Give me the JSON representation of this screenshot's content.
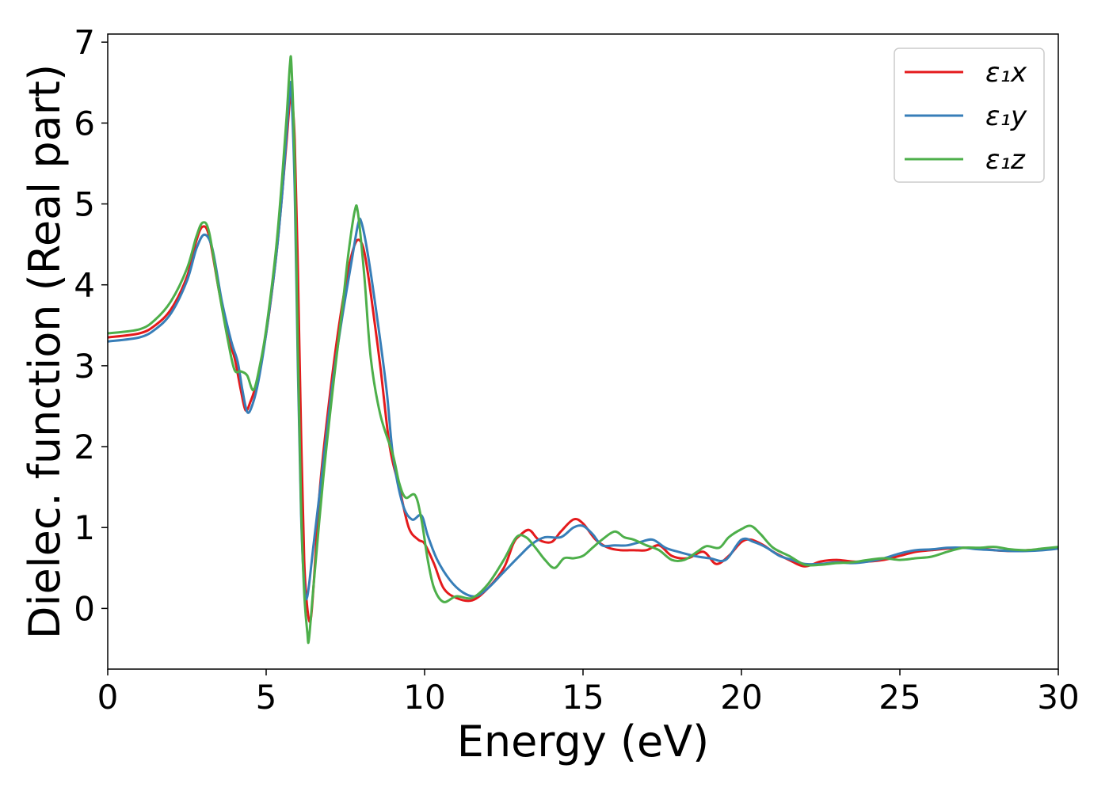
{
  "chart_data": {
    "type": "line",
    "title": "",
    "xlabel": "Energy (eV)",
    "ylabel": "Dielec. function (Real part)",
    "xlim": [
      0,
      30
    ],
    "ylim": [
      -0.75,
      7.1
    ],
    "xticks": [
      0,
      5,
      10,
      15,
      20,
      25,
      30
    ],
    "yticks": [
      0,
      1,
      2,
      3,
      4,
      5,
      6,
      7
    ],
    "xtick_labels": [
      "0",
      "5",
      "10",
      "15",
      "20",
      "25",
      "30"
    ],
    "ytick_labels": [
      "0",
      "1",
      "2",
      "3",
      "4",
      "5",
      "6",
      "7"
    ],
    "grid": false,
    "legend_position": "top-right",
    "series": [
      {
        "name": "ε₁x",
        "color": "#e41a1c",
        "points": [
          [
            0,
            3.35
          ],
          [
            1,
            3.4
          ],
          [
            1.5,
            3.5
          ],
          [
            2,
            3.7
          ],
          [
            2.5,
            4.1
          ],
          [
            2.8,
            4.55
          ],
          [
            3.0,
            4.72
          ],
          [
            3.2,
            4.6
          ],
          [
            3.5,
            3.95
          ],
          [
            3.8,
            3.35
          ],
          [
            4.0,
            3.1
          ],
          [
            4.2,
            2.7
          ],
          [
            4.35,
            2.45
          ],
          [
            4.5,
            2.55
          ],
          [
            4.7,
            2.8
          ],
          [
            5.0,
            3.4
          ],
          [
            5.3,
            4.3
          ],
          [
            5.5,
            5.1
          ],
          [
            5.65,
            5.8
          ],
          [
            5.75,
            6.3
          ],
          [
            5.8,
            6.35
          ],
          [
            5.9,
            5.8
          ],
          [
            6.0,
            4.2
          ],
          [
            6.1,
            2.2
          ],
          [
            6.2,
            0.6
          ],
          [
            6.3,
            0.0
          ],
          [
            6.4,
            -0.15
          ],
          [
            6.5,
            0.3
          ],
          [
            6.7,
            1.5
          ],
          [
            7.0,
            2.6
          ],
          [
            7.3,
            3.5
          ],
          [
            7.6,
            4.2
          ],
          [
            7.8,
            4.5
          ],
          [
            7.95,
            4.55
          ],
          [
            8.1,
            4.4
          ],
          [
            8.3,
            3.9
          ],
          [
            8.6,
            3.0
          ],
          [
            8.9,
            2.0
          ],
          [
            9.2,
            1.5
          ],
          [
            9.5,
            1.0
          ],
          [
            9.8,
            0.85
          ],
          [
            10.0,
            0.8
          ],
          [
            10.3,
            0.55
          ],
          [
            10.6,
            0.25
          ],
          [
            11.0,
            0.13
          ],
          [
            11.5,
            0.1
          ],
          [
            12.0,
            0.25
          ],
          [
            12.5,
            0.5
          ],
          [
            12.8,
            0.8
          ],
          [
            13.0,
            0.9
          ],
          [
            13.3,
            0.97
          ],
          [
            13.6,
            0.85
          ],
          [
            14.0,
            0.82
          ],
          [
            14.3,
            0.95
          ],
          [
            14.7,
            1.1
          ],
          [
            15.0,
            1.05
          ],
          [
            15.4,
            0.85
          ],
          [
            15.8,
            0.75
          ],
          [
            16.2,
            0.72
          ],
          [
            16.6,
            0.72
          ],
          [
            17.0,
            0.72
          ],
          [
            17.4,
            0.78
          ],
          [
            17.8,
            0.65
          ],
          [
            18.3,
            0.62
          ],
          [
            18.8,
            0.7
          ],
          [
            19.2,
            0.55
          ],
          [
            19.6,
            0.65
          ],
          [
            20.0,
            0.82
          ],
          [
            20.3,
            0.85
          ],
          [
            20.7,
            0.78
          ],
          [
            21.0,
            0.7
          ],
          [
            21.5,
            0.6
          ],
          [
            22.0,
            0.52
          ],
          [
            22.5,
            0.58
          ],
          [
            23.0,
            0.6
          ],
          [
            23.5,
            0.58
          ],
          [
            24.0,
            0.58
          ],
          [
            24.5,
            0.6
          ],
          [
            25.0,
            0.65
          ],
          [
            25.5,
            0.7
          ],
          [
            26.0,
            0.72
          ],
          [
            26.5,
            0.74
          ],
          [
            27.0,
            0.75
          ],
          [
            27.5,
            0.74
          ],
          [
            28.0,
            0.72
          ],
          [
            28.5,
            0.71
          ],
          [
            29.0,
            0.72
          ],
          [
            29.5,
            0.73
          ],
          [
            30.0,
            0.75
          ]
        ]
      },
      {
        "name": "ε₁y",
        "color": "#377eb8",
        "points": [
          [
            0,
            3.3
          ],
          [
            1,
            3.35
          ],
          [
            1.5,
            3.45
          ],
          [
            2,
            3.65
          ],
          [
            2.5,
            4.05
          ],
          [
            2.8,
            4.45
          ],
          [
            3.05,
            4.62
          ],
          [
            3.3,
            4.45
          ],
          [
            3.6,
            3.8
          ],
          [
            3.9,
            3.3
          ],
          [
            4.1,
            3.05
          ],
          [
            4.25,
            2.7
          ],
          [
            4.4,
            2.43
          ],
          [
            4.55,
            2.5
          ],
          [
            4.75,
            2.8
          ],
          [
            5.0,
            3.4
          ],
          [
            5.3,
            4.3
          ],
          [
            5.5,
            5.1
          ],
          [
            5.65,
            5.9
          ],
          [
            5.75,
            6.45
          ],
          [
            5.8,
            6.35
          ],
          [
            5.9,
            5.2
          ],
          [
            6.0,
            3.0
          ],
          [
            6.1,
            1.2
          ],
          [
            6.2,
            0.3
          ],
          [
            6.3,
            0.15
          ],
          [
            6.5,
            0.8
          ],
          [
            6.8,
            1.8
          ],
          [
            7.1,
            2.8
          ],
          [
            7.4,
            3.6
          ],
          [
            7.7,
            4.3
          ],
          [
            7.9,
            4.75
          ],
          [
            8.0,
            4.78
          ],
          [
            8.2,
            4.4
          ],
          [
            8.5,
            3.6
          ],
          [
            8.8,
            2.7
          ],
          [
            9.0,
            1.9
          ],
          [
            9.3,
            1.3
          ],
          [
            9.6,
            1.1
          ],
          [
            9.9,
            1.15
          ],
          [
            10.1,
            0.9
          ],
          [
            10.4,
            0.6
          ],
          [
            10.8,
            0.35
          ],
          [
            11.2,
            0.2
          ],
          [
            11.6,
            0.15
          ],
          [
            12.0,
            0.25
          ],
          [
            12.5,
            0.45
          ],
          [
            13.0,
            0.65
          ],
          [
            13.4,
            0.8
          ],
          [
            13.8,
            0.88
          ],
          [
            14.3,
            0.88
          ],
          [
            14.7,
            1.0
          ],
          [
            15.0,
            1.02
          ],
          [
            15.3,
            0.92
          ],
          [
            15.6,
            0.78
          ],
          [
            16.0,
            0.78
          ],
          [
            16.4,
            0.78
          ],
          [
            16.8,
            0.82
          ],
          [
            17.2,
            0.85
          ],
          [
            17.6,
            0.75
          ],
          [
            18.0,
            0.7
          ],
          [
            18.5,
            0.65
          ],
          [
            19.0,
            0.62
          ],
          [
            19.5,
            0.6
          ],
          [
            20.0,
            0.85
          ],
          [
            20.4,
            0.82
          ],
          [
            20.8,
            0.75
          ],
          [
            21.2,
            0.65
          ],
          [
            21.6,
            0.6
          ],
          [
            22.0,
            0.55
          ],
          [
            22.5,
            0.55
          ],
          [
            23.0,
            0.57
          ],
          [
            23.5,
            0.56
          ],
          [
            24.0,
            0.58
          ],
          [
            24.5,
            0.62
          ],
          [
            25.0,
            0.68
          ],
          [
            25.5,
            0.72
          ],
          [
            26.0,
            0.73
          ],
          [
            26.5,
            0.75
          ],
          [
            27.0,
            0.75
          ],
          [
            27.5,
            0.73
          ],
          [
            28.0,
            0.72
          ],
          [
            28.5,
            0.71
          ],
          [
            29.0,
            0.71
          ],
          [
            29.5,
            0.72
          ],
          [
            30.0,
            0.74
          ]
        ]
      },
      {
        "name": "ε₁z",
        "color": "#4daf4a",
        "points": [
          [
            0,
            3.4
          ],
          [
            1,
            3.45
          ],
          [
            1.5,
            3.57
          ],
          [
            2,
            3.8
          ],
          [
            2.5,
            4.2
          ],
          [
            2.8,
            4.6
          ],
          [
            3.0,
            4.77
          ],
          [
            3.2,
            4.65
          ],
          [
            3.5,
            3.95
          ],
          [
            3.8,
            3.3
          ],
          [
            4.0,
            2.95
          ],
          [
            4.2,
            2.93
          ],
          [
            4.4,
            2.88
          ],
          [
            4.6,
            2.7
          ],
          [
            4.8,
            3.0
          ],
          [
            5.0,
            3.45
          ],
          [
            5.3,
            4.4
          ],
          [
            5.5,
            5.3
          ],
          [
            5.65,
            6.1
          ],
          [
            5.75,
            6.72
          ],
          [
            5.8,
            6.7
          ],
          [
            5.9,
            5.5
          ],
          [
            6.0,
            3.2
          ],
          [
            6.1,
            1.3
          ],
          [
            6.2,
            0.2
          ],
          [
            6.3,
            -0.3
          ],
          [
            6.35,
            -0.38
          ],
          [
            6.5,
            0.3
          ],
          [
            6.8,
            1.6
          ],
          [
            7.1,
            2.7
          ],
          [
            7.4,
            3.7
          ],
          [
            7.6,
            4.4
          ],
          [
            7.8,
            4.92
          ],
          [
            7.9,
            4.88
          ],
          [
            8.1,
            4.1
          ],
          [
            8.3,
            3.1
          ],
          [
            8.6,
            2.4
          ],
          [
            9.0,
            1.9
          ],
          [
            9.2,
            1.55
          ],
          [
            9.4,
            1.37
          ],
          [
            9.7,
            1.4
          ],
          [
            9.9,
            1.1
          ],
          [
            10.1,
            0.6
          ],
          [
            10.3,
            0.25
          ],
          [
            10.6,
            0.08
          ],
          [
            11.0,
            0.15
          ],
          [
            11.5,
            0.13
          ],
          [
            12.0,
            0.3
          ],
          [
            12.5,
            0.6
          ],
          [
            12.9,
            0.88
          ],
          [
            13.2,
            0.88
          ],
          [
            13.5,
            0.75
          ],
          [
            13.8,
            0.6
          ],
          [
            14.1,
            0.5
          ],
          [
            14.4,
            0.62
          ],
          [
            14.7,
            0.62
          ],
          [
            15.0,
            0.65
          ],
          [
            15.3,
            0.75
          ],
          [
            15.6,
            0.85
          ],
          [
            16.0,
            0.95
          ],
          [
            16.3,
            0.88
          ],
          [
            16.6,
            0.85
          ],
          [
            17.0,
            0.78
          ],
          [
            17.4,
            0.72
          ],
          [
            17.8,
            0.6
          ],
          [
            18.2,
            0.6
          ],
          [
            18.6,
            0.7
          ],
          [
            18.9,
            0.77
          ],
          [
            19.3,
            0.75
          ],
          [
            19.6,
            0.88
          ],
          [
            20.0,
            0.98
          ],
          [
            20.3,
            1.02
          ],
          [
            20.6,
            0.92
          ],
          [
            21.0,
            0.75
          ],
          [
            21.5,
            0.65
          ],
          [
            22.0,
            0.54
          ],
          [
            22.5,
            0.54
          ],
          [
            23.0,
            0.56
          ],
          [
            23.5,
            0.57
          ],
          [
            24.0,
            0.6
          ],
          [
            24.5,
            0.62
          ],
          [
            25.0,
            0.6
          ],
          [
            25.5,
            0.62
          ],
          [
            26.0,
            0.64
          ],
          [
            26.5,
            0.7
          ],
          [
            27.0,
            0.75
          ],
          [
            27.5,
            0.75
          ],
          [
            28.0,
            0.76
          ],
          [
            28.5,
            0.73
          ],
          [
            29.0,
            0.72
          ],
          [
            29.5,
            0.74
          ],
          [
            30.0,
            0.76
          ]
        ]
      }
    ]
  }
}
